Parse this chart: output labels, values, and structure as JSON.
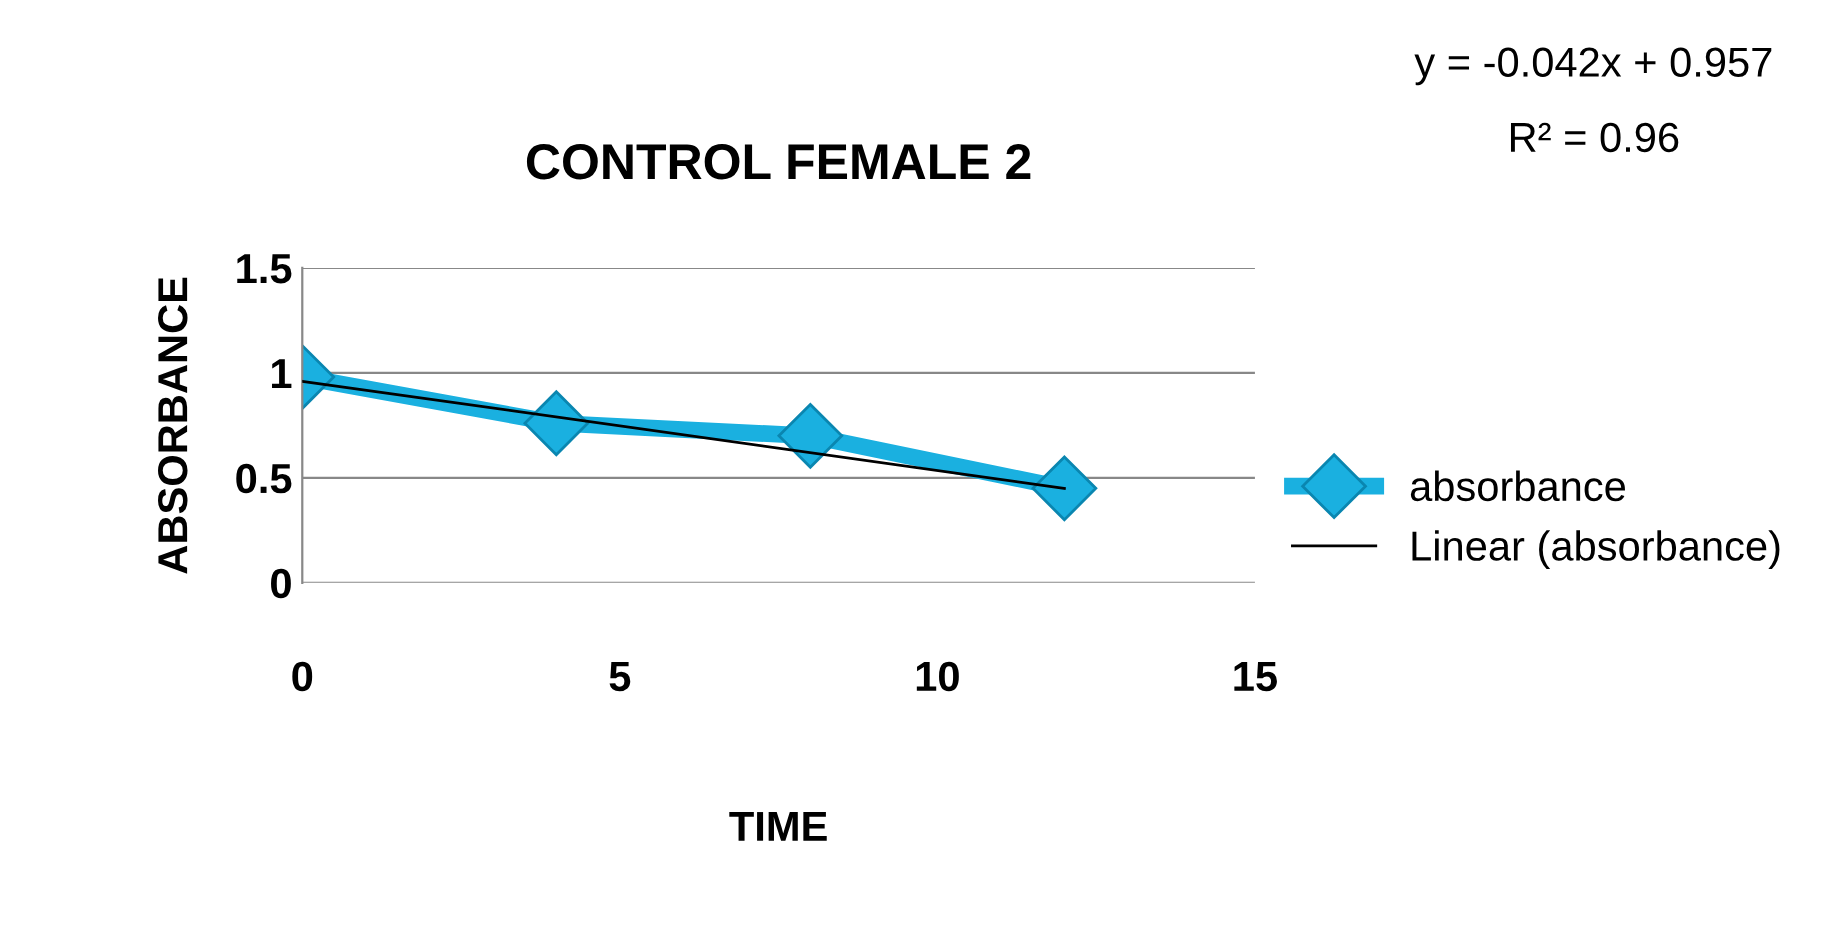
{
  "chart_data": {
    "type": "line",
    "title": "CONTROL FEMALE 2",
    "xlabel": "TIME",
    "ylabel": "ABSORBANCE",
    "x": [
      0,
      4,
      8,
      12
    ],
    "series": [
      {
        "name": "absorbance",
        "color": "#1ab0e0",
        "values": [
          0.98,
          0.76,
          0.7,
          0.45
        ],
        "marker": "diamond"
      },
      {
        "name": "Linear (absorbance)",
        "type": "line",
        "color": "#000000",
        "x": [
          0,
          12
        ],
        "values": [
          0.96,
          0.45
        ],
        "marker": "none"
      }
    ],
    "xlim": [
      0,
      15
    ],
    "xticks": [
      0,
      5,
      10,
      15
    ],
    "ylim": [
      0,
      1.5
    ],
    "yticks": [
      0,
      0.5,
      1,
      1.5
    ],
    "grid": "y",
    "legend": "right",
    "annotations": [
      "y = -0.042x + 0.957",
      "R² = 0.96"
    ]
  }
}
